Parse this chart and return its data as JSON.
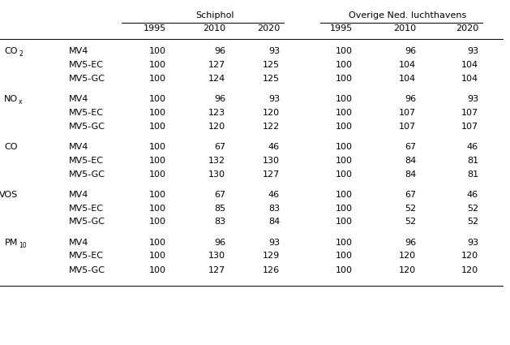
{
  "col_groups": [
    {
      "label": "Schiphol",
      "cols": [
        "1995",
        "2010",
        "2020"
      ]
    },
    {
      "label": "Overige Ned. luchthavens",
      "cols": [
        "1995",
        "2010",
        "2020"
      ]
    }
  ],
  "row_groups": [
    {
      "label": "CO",
      "label_sub": "2",
      "rows": [
        {
          "scenario": "MV4",
          "schiphol": [
            100,
            96,
            93
          ],
          "overige": [
            100,
            96,
            93
          ]
        },
        {
          "scenario": "MV5-EC",
          "schiphol": [
            100,
            127,
            125
          ],
          "overige": [
            100,
            104,
            104
          ]
        },
        {
          "scenario": "MV5-GC",
          "schiphol": [
            100,
            124,
            125
          ],
          "overige": [
            100,
            104,
            104
          ]
        }
      ]
    },
    {
      "label": "NO",
      "label_sub": "x",
      "rows": [
        {
          "scenario": "MV4",
          "schiphol": [
            100,
            96,
            93
          ],
          "overige": [
            100,
            96,
            93
          ]
        },
        {
          "scenario": "MV5-EC",
          "schiphol": [
            100,
            123,
            120
          ],
          "overige": [
            100,
            107,
            107
          ]
        },
        {
          "scenario": "MV5-GC",
          "schiphol": [
            100,
            120,
            122
          ],
          "overige": [
            100,
            107,
            107
          ]
        }
      ]
    },
    {
      "label": "CO",
      "label_sub": "",
      "rows": [
        {
          "scenario": "MV4",
          "schiphol": [
            100,
            67,
            46
          ],
          "overige": [
            100,
            67,
            46
          ]
        },
        {
          "scenario": "MV5-EC",
          "schiphol": [
            100,
            132,
            130
          ],
          "overige": [
            100,
            84,
            81
          ]
        },
        {
          "scenario": "MV5-GC",
          "schiphol": [
            100,
            130,
            127
          ],
          "overige": [
            100,
            84,
            81
          ]
        }
      ]
    },
    {
      "label": "VOS",
      "label_sub": "",
      "rows": [
        {
          "scenario": "MV4",
          "schiphol": [
            100,
            67,
            46
          ],
          "overige": [
            100,
            67,
            46
          ]
        },
        {
          "scenario": "MV5-EC",
          "schiphol": [
            100,
            85,
            83
          ],
          "overige": [
            100,
            52,
            52
          ]
        },
        {
          "scenario": "MV5-GC",
          "schiphol": [
            100,
            83,
            84
          ],
          "overige": [
            100,
            52,
            52
          ]
        }
      ]
    },
    {
      "label": "PM",
      "label_sub": "10",
      "rows": [
        {
          "scenario": "MV4",
          "schiphol": [
            100,
            96,
            93
          ],
          "overige": [
            100,
            96,
            93
          ]
        },
        {
          "scenario": "MV5-EC",
          "schiphol": [
            100,
            130,
            129
          ],
          "overige": [
            100,
            120,
            120
          ]
        },
        {
          "scenario": "MV5-GC",
          "schiphol": [
            100,
            127,
            126
          ],
          "overige": [
            100,
            120,
            120
          ]
        }
      ]
    }
  ],
  "bg_color": "#ffffff",
  "text_color": "#000000",
  "font_size": 8.0
}
